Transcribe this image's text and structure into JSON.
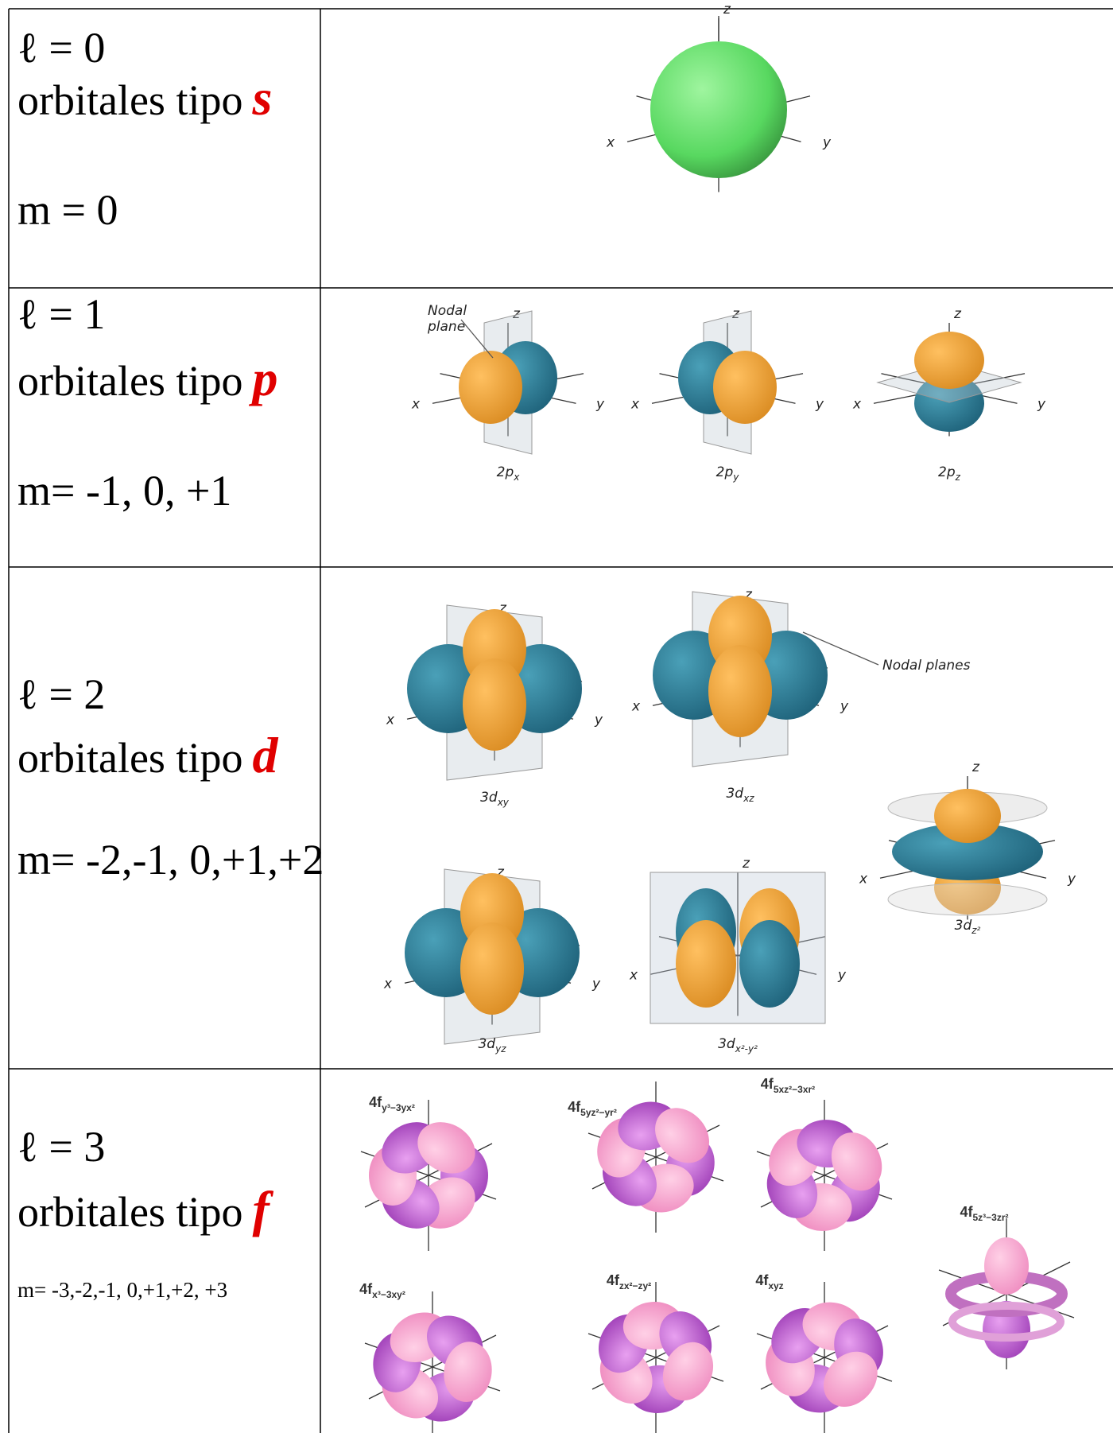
{
  "table": {
    "rows": [
      {
        "l": "ℓ = 0",
        "type_text": "orbitales tipo",
        "type_letter": "s",
        "m": "m = 0",
        "figures": [
          {
            "axes": [
              "z",
              "x",
              "y"
            ]
          }
        ]
      },
      {
        "l": "ℓ = 1",
        "type_text": "orbitales tipo",
        "type_letter": "p",
        "m": "m= -1, 0, +1",
        "note": [
          "Nodal",
          "plane"
        ],
        "figures": [
          {
            "label": {
              "main": "2p",
              "sub": "x"
            },
            "axes": [
              "z",
              "x",
              "y"
            ]
          },
          {
            "label": {
              "main": "2p",
              "sub": "y"
            },
            "axes": [
              "z",
              "x",
              "y"
            ]
          },
          {
            "label": {
              "main": "2p",
              "sub": "z"
            },
            "axes": [
              "z",
              "x",
              "y"
            ]
          }
        ]
      },
      {
        "l": "ℓ = 2",
        "type_text": "orbitales tipo",
        "type_letter": "d",
        "m": "m= -2,-1, 0,+1,+2",
        "note": [
          "Nodal planes"
        ],
        "figures": [
          {
            "label": {
              "main": "3d",
              "sub": "xy"
            },
            "axes": [
              "z",
              "x",
              "y"
            ]
          },
          {
            "label": {
              "main": "3d",
              "sub": "xz"
            },
            "axes": [
              "z",
              "x",
              "y"
            ]
          },
          {
            "label": {
              "main": "3d",
              "sub": "z²"
            },
            "axes": [
              "z",
              "x",
              "y"
            ]
          },
          {
            "label": {
              "main": "3d",
              "sub": "yz"
            },
            "axes": [
              "z",
              "x",
              "y"
            ]
          },
          {
            "label": {
              "main": "3d",
              "sub": "x²-y²"
            },
            "axes": [
              "z",
              "x",
              "y"
            ]
          }
        ]
      },
      {
        "l": "ℓ = 3",
        "type_text": "orbitales tipo",
        "type_letter": "f",
        "m": "m= -3,-2,-1, 0,+1,+2, +3",
        "figures": [
          {
            "label": {
              "main": "4f",
              "sub": "y³−3yx²"
            }
          },
          {
            "label": {
              "main": "4f",
              "sub": "5yz²−yr²"
            }
          },
          {
            "label": {
              "main": "4f",
              "sub": "5xz²−3xr²"
            }
          },
          {
            "label": {
              "main": "4f",
              "sub": "5z³−3zr²"
            }
          },
          {
            "label": {
              "main": "4f",
              "sub": "x³−3xy²"
            }
          },
          {
            "label": {
              "main": "4f",
              "sub": "zx²−zy²"
            }
          },
          {
            "label": {
              "main": "4f",
              "sub": "xyz"
            }
          }
        ]
      }
    ]
  }
}
